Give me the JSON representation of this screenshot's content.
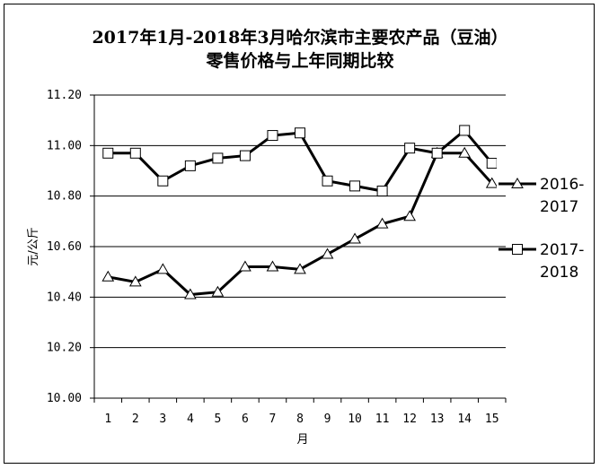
{
  "chart_data": {
    "type": "line",
    "title": "2017年1月-2018年3月哈尔滨市主要农产品（豆油）",
    "subtitle": "零售价格与上年同期比较",
    "xlabel": "月",
    "ylabel": "元/公斤",
    "x": [
      1,
      2,
      3,
      4,
      5,
      6,
      7,
      8,
      9,
      10,
      11,
      12,
      13,
      14,
      15
    ],
    "xtick_labels": [
      "1",
      "2",
      "3",
      "4",
      "5",
      "6",
      "7",
      "8",
      "9",
      "10",
      "11",
      "12",
      "13",
      "14",
      "15"
    ],
    "ylim": [
      10.0,
      11.2
    ],
    "yticks": [
      10.0,
      10.2,
      10.4,
      10.6,
      10.8,
      11.0,
      11.2
    ],
    "ytick_labels": [
      "10.00",
      "10.20",
      "10.40",
      "10.60",
      "10.80",
      "11.00",
      "11.20"
    ],
    "grid": "horizontal",
    "legend_position": "right",
    "series": [
      {
        "name": "2016-2017",
        "marker": "triangle",
        "color": "#000000",
        "values": [
          10.48,
          10.46,
          10.51,
          10.41,
          10.42,
          10.52,
          10.52,
          10.51,
          10.57,
          10.63,
          10.69,
          10.72,
          10.97,
          10.97,
          10.85
        ]
      },
      {
        "name": "2017-2018",
        "marker": "square",
        "color": "#000000",
        "values": [
          10.97,
          10.97,
          10.86,
          10.92,
          10.95,
          10.96,
          11.04,
          11.05,
          10.86,
          10.84,
          10.82,
          10.99,
          10.97,
          11.06,
          10.93
        ]
      }
    ]
  }
}
